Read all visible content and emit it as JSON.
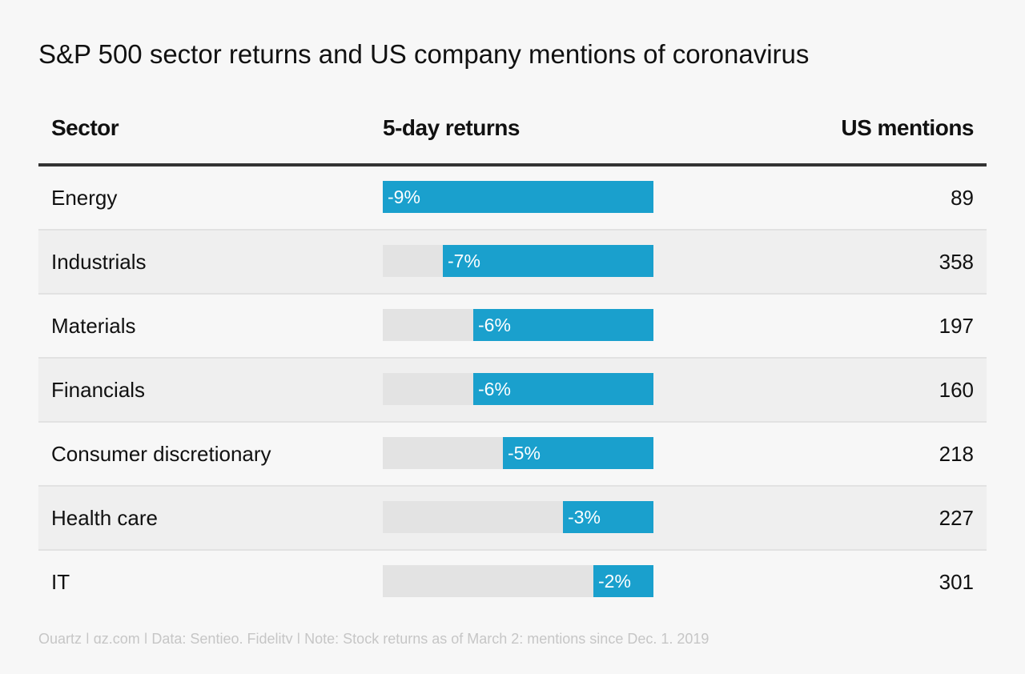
{
  "chart_data": {
    "type": "table",
    "title": "S&P 500 sector returns and US company mentions of coronavirus",
    "columns": [
      "Sector",
      "5-day returns",
      "US mentions"
    ],
    "rows": [
      {
        "sector": "Energy",
        "return": -9,
        "return_label": "-9%",
        "mentions": 89
      },
      {
        "sector": "Industrials",
        "return": -7,
        "return_label": "-7%",
        "mentions": 358
      },
      {
        "sector": "Materials",
        "return": -6,
        "return_label": "-6%",
        "mentions": 197
      },
      {
        "sector": "Financials",
        "return": -6,
        "return_label": "-6%",
        "mentions": 160
      },
      {
        "sector": "Consumer discretionary",
        "return": -5,
        "return_label": "-5%",
        "mentions": 218
      },
      {
        "sector": "Health care",
        "return": -3,
        "return_label": "-3%",
        "mentions": 227
      },
      {
        "sector": "IT",
        "return": -2,
        "return_label": "-2%",
        "mentions": 301
      }
    ],
    "return_scale_min": -9,
    "bar_color": "#1aa0cd",
    "track_color": "#e3e3e3"
  },
  "footer": "Quartz | qz.com | Data: Sentieo, Fidelity | Note: Stock returns as of March 2; mentions since Dec. 1, 2019"
}
